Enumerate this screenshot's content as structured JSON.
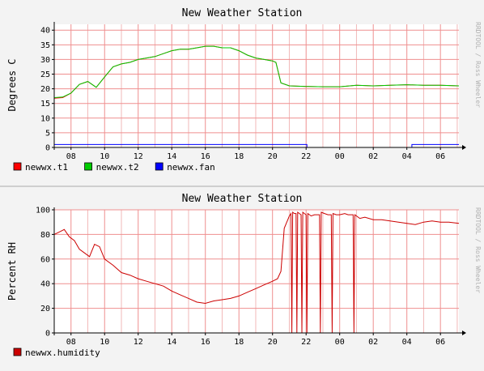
{
  "chart_data": [
    {
      "type": "line",
      "title": "New Weather Station",
      "ylabel": "Degrees C",
      "xlabel": "",
      "credit": "RRDTOOL / Ross Wheeler",
      "x_range_hours": [
        7.0,
        31.1
      ],
      "ylim": [
        0,
        42
      ],
      "y_ticks": [
        0,
        5,
        10,
        15,
        20,
        25,
        30,
        35,
        40
      ],
      "x_tick_labels": [
        "08",
        "10",
        "12",
        "14",
        "16",
        "18",
        "20",
        "22",
        "00",
        "02",
        "04",
        "06"
      ],
      "grid": true,
      "legend_position": "bottom-left",
      "series": [
        {
          "name": "newwx.t1",
          "color": "#ff0000",
          "x": [
            7.0,
            7.5,
            8.0,
            8.5,
            9.0,
            9.5,
            10.0,
            10.5,
            11.0,
            11.5,
            12.0,
            12.5,
            13.0,
            13.5,
            14.0,
            14.5,
            15.0,
            15.5,
            16.0,
            16.5,
            17.0,
            17.5,
            18.0,
            18.5,
            19.0,
            19.5,
            20.0,
            20.2,
            20.5,
            21.0,
            22.0,
            23.0,
            24.0,
            25.0,
            26.0,
            27.0,
            28.0,
            29.0,
            30.0,
            31.1
          ],
          "y": [
            16.8,
            17.0,
            18.5,
            21.5,
            22.5,
            20.5,
            24.0,
            27.5,
            28.5,
            29.0,
            30.0,
            30.5,
            31.0,
            32.0,
            33.0,
            33.5,
            33.5,
            34.0,
            34.5,
            34.5,
            34.0,
            34.0,
            33.0,
            31.5,
            30.5,
            30.0,
            29.5,
            29.0,
            22.0,
            21.0,
            20.8,
            20.7,
            20.7,
            21.2,
            21.0,
            21.2,
            21.4,
            21.2,
            21.2,
            21.0
          ]
        },
        {
          "name": "newwx.t2",
          "color": "#00cc00",
          "x": [
            7.0,
            7.5,
            8.0,
            8.5,
            9.0,
            9.5,
            10.0,
            10.5,
            11.0,
            11.5,
            12.0,
            12.5,
            13.0,
            13.5,
            14.0,
            14.5,
            15.0,
            15.5,
            16.0,
            16.5,
            17.0,
            17.5,
            18.0,
            18.5,
            19.0,
            19.5,
            20.0,
            20.2,
            20.5,
            21.0,
            22.0,
            23.0,
            24.0,
            25.0,
            26.0,
            27.0,
            28.0,
            29.0,
            30.0,
            31.1
          ],
          "y": [
            17.0,
            17.2,
            18.5,
            21.5,
            22.5,
            20.5,
            24.0,
            27.5,
            28.5,
            29.0,
            30.0,
            30.5,
            31.0,
            32.0,
            33.0,
            33.5,
            33.5,
            34.0,
            34.5,
            34.5,
            34.0,
            34.0,
            33.0,
            31.5,
            30.5,
            30.0,
            29.5,
            29.0,
            22.0,
            21.0,
            20.8,
            20.7,
            20.7,
            21.2,
            21.0,
            21.2,
            21.4,
            21.2,
            21.2,
            21.0
          ]
        },
        {
          "name": "newwx.fan",
          "color": "#0000ff",
          "x": [
            7.0,
            22.05,
            22.05,
            28.3,
            28.3,
            31.1
          ],
          "y": [
            1,
            1,
            0,
            0,
            1,
            1
          ]
        }
      ]
    },
    {
      "type": "line",
      "title": "New Weather Station",
      "ylabel": "Percent RH",
      "xlabel": "",
      "credit": "RRDTOOL / Ross Wheeler",
      "x_range_hours": [
        7.0,
        31.1
      ],
      "ylim": [
        0,
        100
      ],
      "y_ticks": [
        0,
        20,
        40,
        60,
        80,
        100
      ],
      "x_tick_labels": [
        "08",
        "10",
        "12",
        "14",
        "16",
        "18",
        "20",
        "22",
        "00",
        "02",
        "04",
        "06"
      ],
      "grid": true,
      "legend_position": "bottom-left",
      "series": [
        {
          "name": "newwx.humidity",
          "color": "#cc0000",
          "x": [
            7.0,
            7.3,
            7.6,
            7.9,
            8.2,
            8.5,
            8.8,
            9.1,
            9.4,
            9.7,
            10.0,
            10.5,
            11.0,
            11.5,
            12.0,
            12.5,
            13.0,
            13.5,
            14.0,
            14.5,
            15.0,
            15.5,
            16.0,
            16.5,
            17.0,
            17.5,
            18.0,
            18.5,
            19.0,
            19.5,
            20.0,
            20.3,
            20.5,
            20.7,
            21.0,
            21.1,
            21.15,
            21.2,
            21.3,
            21.4,
            21.45,
            21.5,
            21.6,
            21.7,
            21.75,
            21.8,
            21.9,
            22.0,
            22.05,
            22.1,
            22.3,
            22.5,
            22.7,
            22.8,
            22.85,
            22.9,
            23.1,
            23.3,
            23.5,
            23.55,
            23.6,
            23.8,
            24.0,
            24.3,
            24.5,
            24.8,
            24.85,
            24.9,
            25.2,
            25.5,
            26.0,
            26.5,
            27.0,
            27.5,
            28.0,
            28.5,
            29.0,
            29.5,
            30.0,
            30.5,
            31.1
          ],
          "y": [
            80,
            82,
            84,
            78,
            75,
            68,
            65,
            62,
            72,
            70,
            60,
            55,
            49,
            47,
            44,
            42,
            40,
            38,
            34,
            31,
            28,
            25,
            24,
            26,
            27,
            28,
            30,
            33,
            36,
            39,
            42,
            44,
            50,
            85,
            95,
            97,
            0,
            98,
            97,
            97,
            0,
            98,
            97,
            96,
            0,
            98,
            97,
            96,
            0,
            97,
            95,
            96,
            96,
            96,
            0,
            98,
            97,
            96,
            96,
            0,
            97,
            96,
            96,
            97,
            96,
            96,
            0,
            96,
            93,
            94,
            92,
            92,
            91,
            90,
            89,
            88,
            90,
            91,
            90,
            90,
            89
          ]
        }
      ]
    }
  ]
}
